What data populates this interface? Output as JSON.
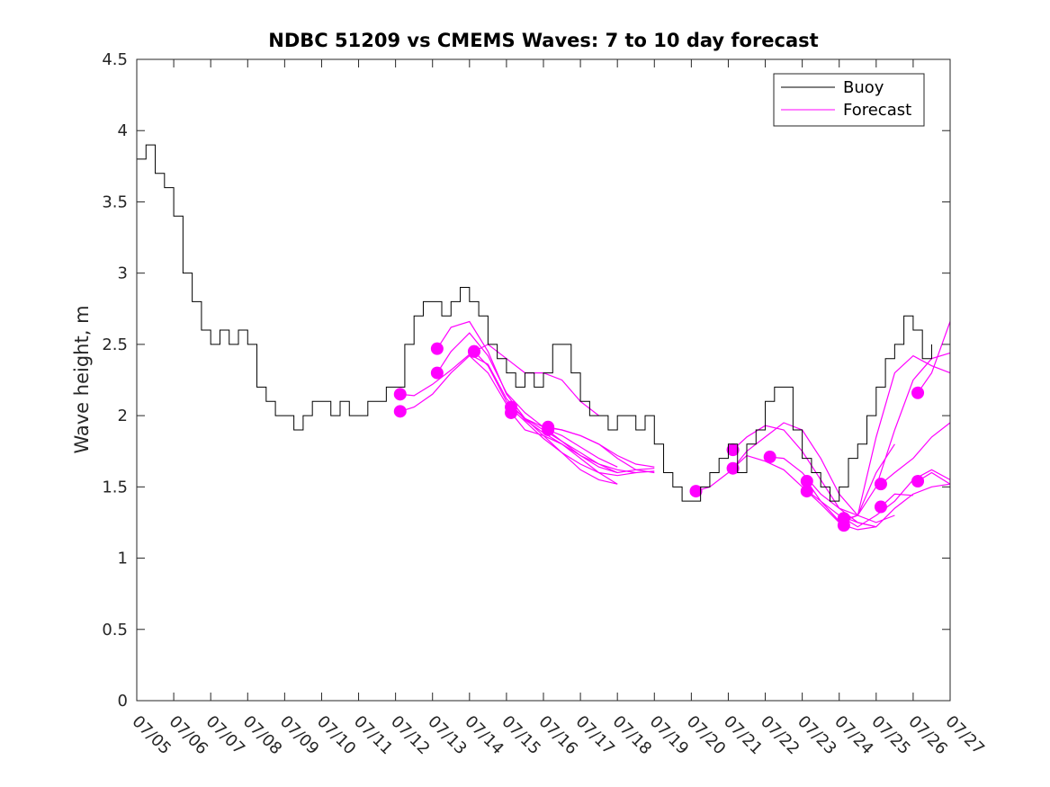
{
  "chart_data": {
    "type": "line",
    "title": "NDBC 51209 vs CMEMS Waves: 7 to 10 day forecast",
    "xlabel": "",
    "ylabel": "Wave height, m",
    "xlim": [
      "07/05",
      "07/27"
    ],
    "ylim": [
      0,
      4.5
    ],
    "grid": false,
    "legend_position": "top-right",
    "x_ticks": [
      "07/05",
      "07/06",
      "07/07",
      "07/08",
      "07/09",
      "07/10",
      "07/11",
      "07/12",
      "07/13",
      "07/14",
      "07/15",
      "07/16",
      "07/17",
      "07/18",
      "07/19",
      "07/20",
      "07/21",
      "07/22",
      "07/23",
      "07/24",
      "07/25",
      "07/26",
      "07/27"
    ],
    "y_ticks": [
      "0",
      "0.5",
      "1",
      "1.5",
      "2",
      "2.5",
      "3",
      "3.5",
      "4",
      "4.5"
    ],
    "colors": {
      "buoy": "#000000",
      "forecast": "#ff00ff"
    },
    "series": [
      {
        "name": "Buoy",
        "color": "#000000",
        "x": [
          "07/05",
          "07/05 06:00",
          "07/05 12:00",
          "07/05 18:00",
          "07/06",
          "07/06 06:00",
          "07/06 12:00",
          "07/06 18:00",
          "07/07",
          "07/07 06:00",
          "07/07 12:00",
          "07/07 18:00",
          "07/08",
          "07/08 06:00",
          "07/08 12:00",
          "07/08 18:00",
          "07/09",
          "07/09 06:00",
          "07/09 12:00",
          "07/09 18:00",
          "07/10",
          "07/10 06:00",
          "07/10 12:00",
          "07/10 18:00",
          "07/11",
          "07/11 06:00",
          "07/11 12:00",
          "07/11 18:00",
          "07/12",
          "07/12 06:00",
          "07/12 12:00",
          "07/12 18:00",
          "07/13",
          "07/13 06:00",
          "07/13 12:00",
          "07/13 18:00",
          "07/14",
          "07/14 06:00",
          "07/14 12:00",
          "07/14 18:00",
          "07/15",
          "07/15 06:00",
          "07/15 12:00",
          "07/15 18:00",
          "07/16",
          "07/16 06:00",
          "07/16 12:00",
          "07/16 18:00",
          "07/17",
          "07/17 06:00",
          "07/17 12:00",
          "07/17 18:00",
          "07/18",
          "07/18 06:00",
          "07/18 12:00",
          "07/18 18:00",
          "07/19",
          "07/19 06:00",
          "07/19 12:00",
          "07/19 18:00",
          "07/20",
          "07/20 06:00",
          "07/20 12:00",
          "07/20 18:00",
          "07/21",
          "07/21 06:00",
          "07/21 12:00",
          "07/21 18:00",
          "07/22",
          "07/22 06:00",
          "07/22 12:00",
          "07/22 18:00",
          "07/23",
          "07/23 06:00",
          "07/23 12:00",
          "07/23 18:00",
          "07/24",
          "07/24 06:00",
          "07/24 12:00",
          "07/24 18:00",
          "07/25",
          "07/25 06:00",
          "07/25 12:00",
          "07/25 18:00",
          "07/26",
          "07/26 06:00",
          "07/26 12:00"
        ],
        "values": [
          3.8,
          3.9,
          3.7,
          3.6,
          3.4,
          3.0,
          2.8,
          2.6,
          2.5,
          2.6,
          2.5,
          2.6,
          2.5,
          2.2,
          2.1,
          2.0,
          2.0,
          1.9,
          2.0,
          2.1,
          2.1,
          2.0,
          2.1,
          2.0,
          2.0,
          2.1,
          2.1,
          2.2,
          2.2,
          2.5,
          2.7,
          2.8,
          2.8,
          2.7,
          2.8,
          2.9,
          2.8,
          2.7,
          2.5,
          2.4,
          2.3,
          2.2,
          2.3,
          2.2,
          2.3,
          2.5,
          2.5,
          2.3,
          2.1,
          2.0,
          2.0,
          1.9,
          2.0,
          2.0,
          1.9,
          2.0,
          1.8,
          1.6,
          1.5,
          1.4,
          1.4,
          1.5,
          1.6,
          1.7,
          1.8,
          1.6,
          1.8,
          1.9,
          2.1,
          2.2,
          2.2,
          1.9,
          1.7,
          1.6,
          1.5,
          1.4,
          1.5,
          1.7,
          1.8,
          2.0,
          2.2,
          2.4,
          2.5,
          2.7,
          2.6,
          2.4,
          2.5
        ]
      },
      {
        "name": "Forecast",
        "color": "#ff00ff",
        "runs": [
          {
            "x": [
              "07/12 03:00",
              "07/12 12:00",
              "07/13",
              "07/13 12:00",
              "07/14",
              "07/14 12:00",
              "07/15",
              "07/15 12:00",
              "07/16",
              "07/16 12:00",
              "07/17",
              "07/17 12:00",
              "07/18",
              "07/18 12:00",
              "07/19"
            ],
            "values": [
              2.15,
              2.14,
              2.22,
              2.32,
              2.43,
              2.36,
              2.12,
              1.97,
              1.88,
              1.8,
              1.72,
              1.66,
              1.6,
              1.62,
              1.63
            ]
          },
          {
            "x": [
              "07/12 03:00",
              "07/12 12:00",
              "07/13",
              "07/13 12:00",
              "07/14",
              "07/14 12:00",
              "07/15",
              "07/15 12:00",
              "07/16",
              "07/16 12:00",
              "07/17",
              "07/17 12:00",
              "07/18",
              "07/18 12:00",
              "07/19"
            ],
            "values": [
              2.03,
              2.06,
              2.15,
              2.3,
              2.42,
              2.3,
              2.08,
              1.96,
              1.84,
              1.74,
              1.66,
              1.6,
              1.58,
              1.6,
              1.61
            ]
          },
          {
            "x": [
              "07/13 03:00",
              "07/13 12:00",
              "07/14",
              "07/14 12:00",
              "07/15",
              "07/15 12:00",
              "07/16",
              "07/16 12:00",
              "07/17",
              "07/17 12:00",
              "07/18",
              "07/18 12:00"
            ],
            "values": [
              2.47,
              2.62,
              2.66,
              2.45,
              2.15,
              1.98,
              1.9,
              1.82,
              1.74,
              1.66,
              1.62,
              1.6
            ]
          },
          {
            "x": [
              "07/13 03:00",
              "07/13 12:00",
              "07/14",
              "07/14 12:00",
              "07/15",
              "07/15 12:00",
              "07/16",
              "07/16 12:00",
              "07/17",
              "07/17 12:00",
              "07/18"
            ],
            "values": [
              2.3,
              2.45,
              2.58,
              2.42,
              2.16,
              2.02,
              1.92,
              1.82,
              1.72,
              1.64,
              1.6
            ]
          },
          {
            "x": [
              "07/14 03:00",
              "07/14 12:00",
              "07/15",
              "07/15 12:00",
              "07/16",
              "07/16 12:00",
              "07/17",
              "07/17 12:00",
              "07/18"
            ],
            "values": [
              2.45,
              2.35,
              2.1,
              1.98,
              1.86,
              1.74,
              1.62,
              1.55,
              1.52
            ]
          },
          {
            "x": [
              "07/14 03:00",
              "07/14 12:00",
              "07/15",
              "07/15 12:00",
              "07/16",
              "07/16 12:00",
              "07/17",
              "07/17 12:00"
            ],
            "values": [
              2.45,
              2.5,
              2.4,
              2.3,
              2.3,
              2.25,
              2.1,
              2.0
            ]
          },
          {
            "x": [
              "07/15 03:00",
              "07/15 12:00",
              "07/16",
              "07/16 12:00",
              "07/17",
              "07/17 12:00",
              "07/18",
              "07/18 12:00",
              "07/19"
            ],
            "values": [
              2.06,
              1.98,
              1.92,
              1.9,
              1.86,
              1.8,
              1.72,
              1.66,
              1.64
            ]
          },
          {
            "x": [
              "07/15 03:00",
              "07/15 12:00",
              "07/16",
              "07/16 12:00",
              "07/17",
              "07/17 12:00",
              "07/18"
            ],
            "values": [
              2.02,
              1.9,
              1.86,
              1.8,
              1.7,
              1.6,
              1.52
            ]
          },
          {
            "x": [
              "07/16 03:00",
              "07/16 12:00",
              "07/17",
              "07/17 12:00",
              "07/18",
              "07/18 12:00",
              "07/19"
            ],
            "values": [
              1.92,
              1.9,
              1.86,
              1.8,
              1.7,
              1.62,
              1.6
            ]
          },
          {
            "x": [
              "07/16 03:00",
              "07/16 12:00",
              "07/17",
              "07/17 12:00",
              "07/18"
            ],
            "values": [
              1.9,
              1.86,
              1.78,
              1.7,
              1.64
            ]
          },
          {
            "x": [
              "07/20 03:00",
              "07/20 12:00",
              "07/21",
              "07/21 12:00",
              "07/22",
              "07/22 12:00",
              "07/23",
              "07/23 12:00",
              "07/24",
              "07/24 12:00",
              "07/25"
            ],
            "values": [
              1.47,
              1.5,
              1.6,
              1.72,
              1.68,
              1.62,
              1.5,
              1.4,
              1.3,
              1.25,
              1.22
            ]
          },
          {
            "x": [
              "07/21 03:00",
              "07/21 12:00",
              "07/22",
              "07/22 12:00",
              "07/23",
              "07/23 12:00",
              "07/24",
              "07/24 12:00",
              "07/25"
            ],
            "values": [
              1.76,
              1.85,
              1.93,
              1.9,
              1.75,
              1.55,
              1.35,
              1.25,
              1.22
            ]
          },
          {
            "x": [
              "07/21 03:00",
              "07/21 12:00",
              "07/22",
              "07/22 12:00",
              "07/23",
              "07/23 12:00",
              "07/24",
              "07/24 12:00",
              "07/25",
              "07/25 12:00"
            ],
            "values": [
              1.63,
              1.75,
              1.85,
              1.95,
              1.9,
              1.7,
              1.45,
              1.3,
              1.25,
              1.3
            ]
          },
          {
            "x": [
              "07/22 03:00",
              "07/22 12:00",
              "07/23",
              "07/23 12:00",
              "07/24",
              "07/24 12:00",
              "07/25",
              "07/25 12:00",
              "07/26",
              "07/26 12:00",
              "07/27"
            ],
            "values": [
              1.71,
              1.7,
              1.6,
              1.45,
              1.35,
              1.3,
              1.5,
              1.9,
              2.25,
              2.4,
              2.44
            ]
          },
          {
            "x": [
              "07/23 03:00",
              "07/23 12:00",
              "07/24",
              "07/24 12:00",
              "07/25",
              "07/25 12:00",
              "07/26",
              "07/26 12:00",
              "07/27"
            ],
            "values": [
              1.54,
              1.4,
              1.26,
              1.3,
              1.85,
              2.3,
              2.42,
              2.35,
              2.3
            ]
          },
          {
            "x": [
              "07/23 03:00",
              "07/23 12:00",
              "07/24",
              "07/24 12:00",
              "07/25",
              "07/25 12:00"
            ],
            "values": [
              1.47,
              1.38,
              1.25,
              1.3,
              1.6,
              1.8
            ]
          },
          {
            "x": [
              "07/24 03:00",
              "07/24 12:00",
              "07/25",
              "07/25 12:00",
              "07/26",
              "07/26 12:00",
              "07/27"
            ],
            "values": [
              1.28,
              1.22,
              1.3,
              1.4,
              1.55,
              1.62,
              1.55
            ]
          },
          {
            "x": [
              "07/24 03:00",
              "07/24 12:00",
              "07/25",
              "07/25 12:00",
              "07/26",
              "07/26 12:00",
              "07/27"
            ],
            "values": [
              1.23,
              1.2,
              1.22,
              1.35,
              1.45,
              1.5,
              1.52
            ]
          },
          {
            "x": [
              "07/25 03:00",
              "07/25 12:00",
              "07/26",
              "07/26 12:00",
              "07/27"
            ],
            "values": [
              1.52,
              1.6,
              1.7,
              1.85,
              1.95
            ]
          },
          {
            "x": [
              "07/25 03:00",
              "07/25 12:00",
              "07/26"
            ],
            "values": [
              1.36,
              1.45,
              1.44
            ]
          },
          {
            "x": [
              "07/26 03:00",
              "07/26 12:00",
              "07/27"
            ],
            "values": [
              2.16,
              2.3,
              2.66
            ]
          },
          {
            "x": [
              "07/26 03:00",
              "07/26 12:00",
              "07/27"
            ],
            "values": [
              1.54,
              1.6,
              1.52
            ]
          }
        ]
      }
    ]
  }
}
